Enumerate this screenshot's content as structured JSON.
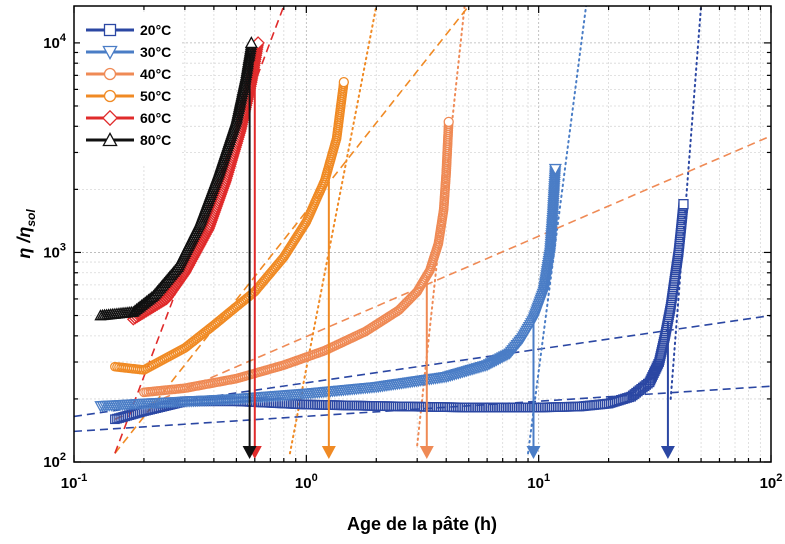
{
  "chart_data": {
    "type": "scatter",
    "xlabel": "Age de la pâte (h)",
    "ylabel": "η / η_sol",
    "ylabel_main": "η /η",
    "ylabel_sub": "sol",
    "xscale": "log",
    "yscale": "log",
    "xlim": [
      0.1,
      100
    ],
    "ylim": [
      100,
      15000
    ],
    "grid": true,
    "legend_position": "top-left",
    "x_ticks": [
      {
        "base": "10",
        "exp": "-1"
      },
      {
        "base": "10",
        "exp": "0"
      },
      {
        "base": "10",
        "exp": "1"
      },
      {
        "base": "10",
        "exp": "2"
      }
    ],
    "y_ticks": [
      {
        "base": "10",
        "exp": "2"
      },
      {
        "base": "10",
        "exp": "3"
      },
      {
        "base": "10",
        "exp": "4"
      }
    ],
    "series": [
      {
        "name": "20°C",
        "color": "#2b47a3",
        "marker": "square",
        "points": [
          [
            0.15,
            160
          ],
          [
            0.2,
            175
          ],
          [
            0.3,
            195
          ],
          [
            0.5,
            195
          ],
          [
            1,
            188
          ],
          [
            2,
            185
          ],
          [
            5,
            182
          ],
          [
            10,
            182
          ],
          [
            15,
            184
          ],
          [
            20,
            190
          ],
          [
            25,
            205
          ],
          [
            30,
            240
          ],
          [
            33,
            300
          ],
          [
            35,
            400
          ],
          [
            37,
            550
          ],
          [
            38.5,
            750
          ],
          [
            40,
            1000
          ],
          [
            41,
            1300
          ],
          [
            42,
            1700
          ]
        ],
        "arrow_x": 36,
        "tangent_lines": [
          [
            [
              0.1,
              140
            ],
            [
              100,
              230
            ]
          ],
          [
            [
              0.1,
              165
            ],
            [
              100,
              500
            ]
          ]
        ],
        "gel_line": [
          [
            37,
            200
          ],
          [
            50,
            15000
          ]
        ]
      },
      {
        "name": "30°C",
        "color": "#4a7dc6",
        "marker": "triangle-down",
        "points": [
          [
            0.13,
            185
          ],
          [
            0.2,
            190
          ],
          [
            0.5,
            200
          ],
          [
            1,
            212
          ],
          [
            2,
            228
          ],
          [
            4,
            255
          ],
          [
            6,
            290
          ],
          [
            7.5,
            330
          ],
          [
            8.5,
            390
          ],
          [
            9.5,
            480
          ],
          [
            10.5,
            650
          ],
          [
            11.2,
            1000
          ],
          [
            11.5,
            1500
          ],
          [
            11.8,
            2500
          ]
        ],
        "arrow_x": 9.5,
        "tangent_lines": [],
        "gel_line": [
          [
            9,
            110
          ],
          [
            16,
            15000
          ]
        ]
      },
      {
        "name": "40°C",
        "color": "#ef8a55",
        "marker": "circle",
        "points": [
          [
            0.2,
            215
          ],
          [
            0.3,
            225
          ],
          [
            0.5,
            250
          ],
          [
            0.8,
            290
          ],
          [
            1.2,
            340
          ],
          [
            1.8,
            420
          ],
          [
            2.5,
            530
          ],
          [
            3,
            650
          ],
          [
            3.4,
            820
          ],
          [
            3.7,
            1100
          ],
          [
            3.9,
            1600
          ],
          [
            4,
            2400
          ],
          [
            4.1,
            4200
          ]
        ],
        "arrow_x": 3.3,
        "tangent_lines": [
          [
            [
              0.15,
              160
            ],
            [
              100,
              3600
            ]
          ]
        ],
        "gel_line": [
          [
            3,
            120
          ],
          [
            4.8,
            15000
          ]
        ]
      },
      {
        "name": "50°C",
        "color": "#f08a24",
        "marker": "circle",
        "points": [
          [
            0.15,
            285
          ],
          [
            0.2,
            275
          ],
          [
            0.3,
            350
          ],
          [
            0.4,
            450
          ],
          [
            0.6,
            650
          ],
          [
            0.8,
            950
          ],
          [
            1,
            1400
          ],
          [
            1.2,
            2200
          ],
          [
            1.35,
            3500
          ],
          [
            1.45,
            6500
          ]
        ],
        "arrow_x": 1.25,
        "tangent_lines": [
          [
            [
              0.15,
              110
            ],
            [
              5,
              15000
            ]
          ]
        ],
        "gel_line": [
          [
            0.85,
            110
          ],
          [
            2,
            15000
          ]
        ]
      },
      {
        "name": "60°C",
        "color": "#e02b2b",
        "marker": "diamond",
        "points": [
          [
            0.18,
            480
          ],
          [
            0.25,
            600
          ],
          [
            0.3,
            800
          ],
          [
            0.38,
            1300
          ],
          [
            0.45,
            2200
          ],
          [
            0.52,
            3800
          ],
          [
            0.58,
            6500
          ],
          [
            0.62,
            10000
          ]
        ],
        "arrow_x": 0.6,
        "tangent_lines": [
          [
            [
              0.15,
              110
            ],
            [
              0.8,
              15000
            ]
          ]
        ],
        "gel_line": []
      },
      {
        "name": "80°C",
        "color": "#111111",
        "marker": "triangle-up",
        "points": [
          [
            0.13,
            500
          ],
          [
            0.18,
            520
          ],
          [
            0.22,
            620
          ],
          [
            0.28,
            850
          ],
          [
            0.35,
            1400
          ],
          [
            0.42,
            2400
          ],
          [
            0.5,
            4300
          ],
          [
            0.55,
            7000
          ],
          [
            0.58,
            10000
          ]
        ],
        "arrow_x": 0.57,
        "tangent_lines": [],
        "gel_line": []
      }
    ]
  }
}
